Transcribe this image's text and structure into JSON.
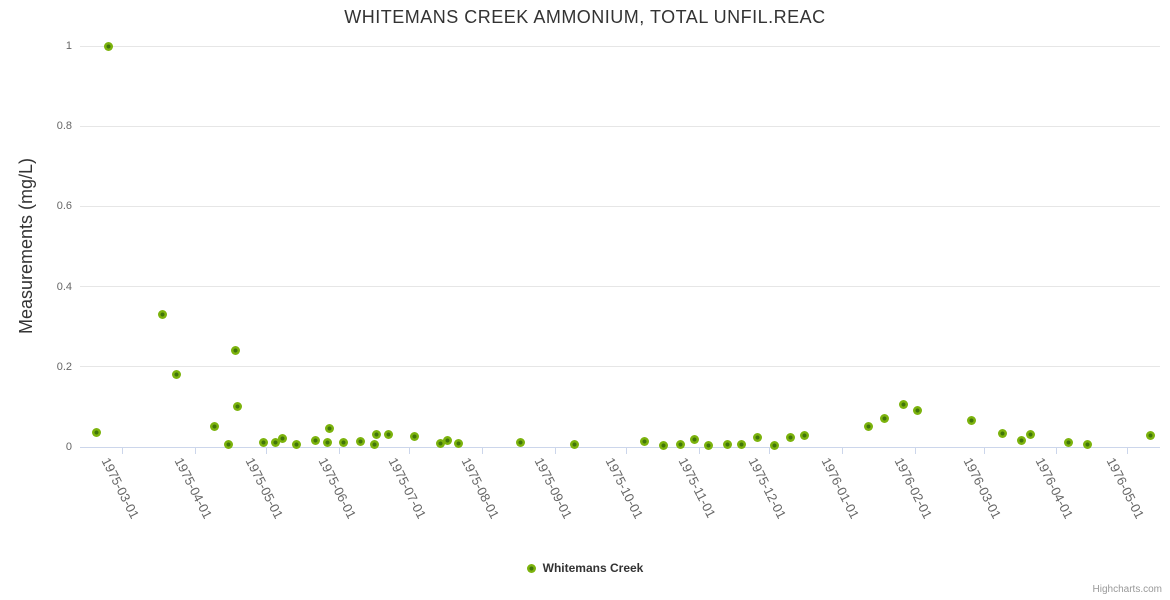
{
  "chart": {
    "title": "WHITEMANS CREEK AMMONIUM, TOTAL UNFIL.REAC",
    "credits": "Highcharts.com"
  },
  "colors": {
    "marker_fill": "#7cb30d",
    "marker_center": "#41750a",
    "gridline": "#e6e6e6",
    "axis_line": "#ccd6eb",
    "tick_label": "#666666",
    "title_text": "#333333"
  },
  "chart_data": {
    "type": "scatter",
    "title": "WHITEMANS CREEK AMMONIUM, TOTAL UNFIL.REAC",
    "xlabel": "",
    "ylabel": "Measurements (mg/L)",
    "ylim": [
      0,
      1
    ],
    "y_ticks": [
      0,
      0.2,
      0.4,
      0.6,
      0.8,
      1
    ],
    "y_tick_labels": [
      "0",
      "0.2",
      "0.4",
      "0.6",
      "0.8",
      "1"
    ],
    "xlim": [
      "1975-02-11",
      "1976-05-15"
    ],
    "x_ticks": [
      "1975-03-01",
      "1975-04-01",
      "1975-05-01",
      "1975-06-01",
      "1975-07-01",
      "1975-08-01",
      "1975-09-01",
      "1975-10-01",
      "1975-11-01",
      "1975-12-01",
      "1976-01-01",
      "1976-02-01",
      "1976-03-01",
      "1976-04-01",
      "1976-05-01"
    ],
    "grid": true,
    "legend": {
      "position": "bottom",
      "entries": [
        {
          "label": "Whitemans Creek",
          "color": "#7cb30d"
        }
      ]
    },
    "series": [
      {
        "name": "Whitemans Creek",
        "color": "#7cb30d",
        "points": [
          [
            "1975-02-18",
            0.035
          ],
          [
            "1975-02-23",
            1.0
          ],
          [
            "1975-03-18",
            0.33
          ],
          [
            "1975-03-24",
            0.18
          ],
          [
            "1975-04-09",
            0.05
          ],
          [
            "1975-04-15",
            0.005
          ],
          [
            "1975-04-18",
            0.24
          ],
          [
            "1975-04-19",
            0.1
          ],
          [
            "1975-04-30",
            0.012
          ],
          [
            "1975-05-05",
            0.01
          ],
          [
            "1975-05-08",
            0.022
          ],
          [
            "1975-05-14",
            0.005
          ],
          [
            "1975-05-22",
            0.017
          ],
          [
            "1975-05-27",
            0.01
          ],
          [
            "1975-05-28",
            0.047
          ],
          [
            "1975-06-03",
            0.01
          ],
          [
            "1975-06-10",
            0.013
          ],
          [
            "1975-06-16",
            0.007
          ],
          [
            "1975-06-17",
            0.032
          ],
          [
            "1975-06-22",
            0.03
          ],
          [
            "1975-07-03",
            0.025
          ],
          [
            "1975-07-14",
            0.008
          ],
          [
            "1975-07-17",
            0.015
          ],
          [
            "1975-07-22",
            0.008
          ],
          [
            "1975-08-17",
            0.01
          ],
          [
            "1975-09-09",
            0.005
          ],
          [
            "1975-10-09",
            0.014
          ],
          [
            "1975-10-17",
            0.004
          ],
          [
            "1975-10-24",
            0.005
          ],
          [
            "1975-10-30",
            0.018
          ],
          [
            "1975-11-05",
            0.004
          ],
          [
            "1975-11-13",
            0.005
          ],
          [
            "1975-11-19",
            0.005
          ],
          [
            "1975-11-26",
            0.023
          ],
          [
            "1975-12-03",
            0.004
          ],
          [
            "1975-12-10",
            0.023
          ],
          [
            "1975-12-16",
            0.028
          ],
          [
            "1976-01-12",
            0.05
          ],
          [
            "1976-01-19",
            0.07
          ],
          [
            "1976-01-27",
            0.105
          ],
          [
            "1976-02-02",
            0.09
          ],
          [
            "1976-02-25",
            0.065
          ],
          [
            "1976-03-09",
            0.033
          ],
          [
            "1976-03-17",
            0.016
          ],
          [
            "1976-03-21",
            0.032
          ],
          [
            "1976-04-06",
            0.01
          ],
          [
            "1976-04-14",
            0.007
          ],
          [
            "1976-05-11",
            0.028
          ]
        ]
      }
    ]
  }
}
